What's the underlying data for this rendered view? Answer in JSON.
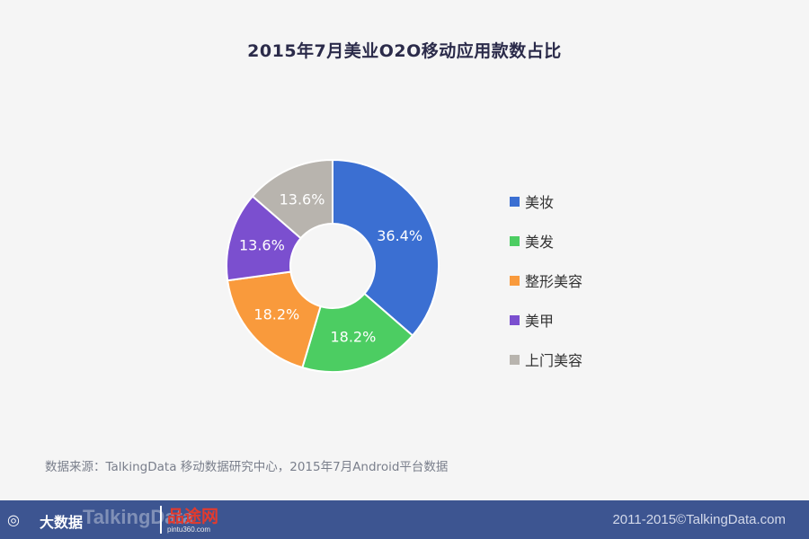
{
  "chart_data": {
    "type": "pie",
    "title": "2015年7月美业O2O移动应用款数占比",
    "categories": [
      "美妆",
      "美发",
      "整形美容",
      "美甲",
      "上门美容"
    ],
    "values": [
      36.4,
      18.2,
      18.2,
      13.6,
      13.6
    ],
    "labels": [
      "36.4%",
      "18.2%",
      "18.2%",
      "13.6%",
      "13.6%"
    ],
    "colors": [
      "#3b6fd2",
      "#4ccd62",
      "#f99a3c",
      "#7b4fcf",
      "#b8b4ae"
    ],
    "donut": true,
    "legend_position": "right"
  },
  "source_text": "数据来源：TalkingData 移动数据研究中心，2015年7月Android平台数据",
  "footer": {
    "brand_cn": "大数据",
    "brand_en": "TalkingData",
    "partner_cn": "品途网",
    "partner_url": "pintu360.com",
    "copyright": "2011-2015©TalkingData.com"
  }
}
